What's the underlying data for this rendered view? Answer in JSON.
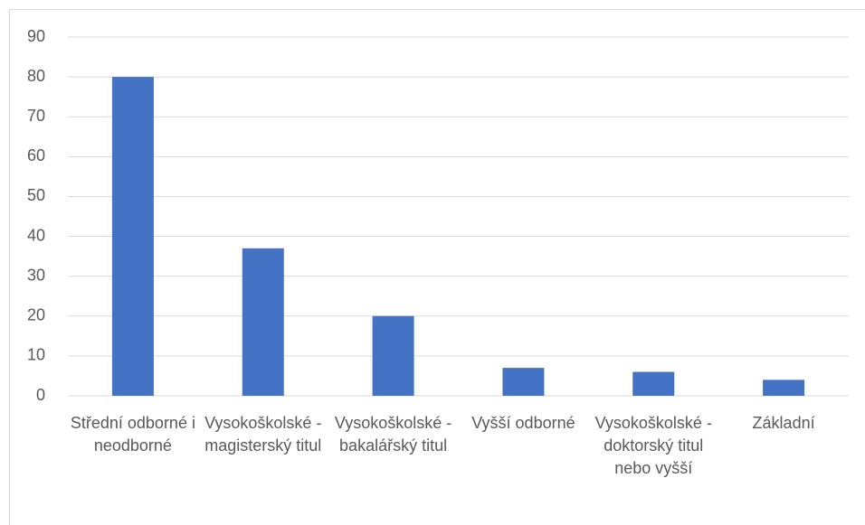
{
  "chart_data": {
    "type": "bar",
    "categories": [
      "Střední odborné i neodborné",
      "Vysokoškolské - magisterský titul",
      "Vysokoškolské - bakalářský titul",
      "Vyšší odborné",
      "Vysokoškolské - doktorský titul nebo vyšší",
      "Základní"
    ],
    "values": [
      80,
      37,
      20,
      7,
      6,
      4
    ],
    "color": "#4472c4",
    "ylim": [
      0,
      90
    ],
    "yticks": [
      0,
      10,
      20,
      30,
      40,
      50,
      60,
      70,
      80,
      90
    ],
    "grid": true
  }
}
